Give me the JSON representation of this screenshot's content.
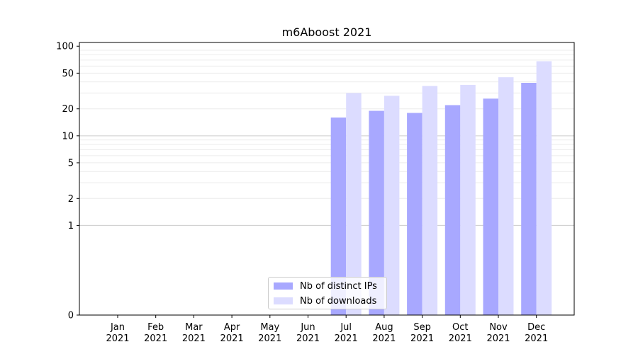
{
  "chart_data": {
    "type": "bar",
    "title": "m6Aboost 2021",
    "xlabel": "",
    "ylabel": "",
    "y_scale": "symlog",
    "ylim": [
      0,
      110
    ],
    "y_ticks": [
      0,
      1,
      2,
      5,
      10,
      20,
      50,
      100
    ],
    "y_tick_labels": [
      "0",
      "1",
      "2",
      "5",
      "10",
      "20",
      "50",
      "100"
    ],
    "categories": [
      "Jan",
      "Feb",
      "Mar",
      "Apr",
      "May",
      "Jun",
      "Jul",
      "Aug",
      "Sep",
      "Oct",
      "Nov",
      "Dec"
    ],
    "category_sub": [
      "2021",
      "2021",
      "2021",
      "2021",
      "2021",
      "2021",
      "2021",
      "2021",
      "2021",
      "2021",
      "2021",
      "2021"
    ],
    "series": [
      {
        "name": "Nb of distinct IPs",
        "color": "#a8a8ff",
        "values": [
          0,
          0,
          0,
          0,
          0,
          0,
          16,
          19,
          18,
          22,
          26,
          39
        ]
      },
      {
        "name": "Nb of downloads",
        "color": "#dcdcff",
        "values": [
          0,
          0,
          0,
          0,
          0,
          0,
          30,
          28,
          36,
          37,
          45,
          68
        ]
      }
    ],
    "legend_position": "lower-center",
    "grid": true
  }
}
